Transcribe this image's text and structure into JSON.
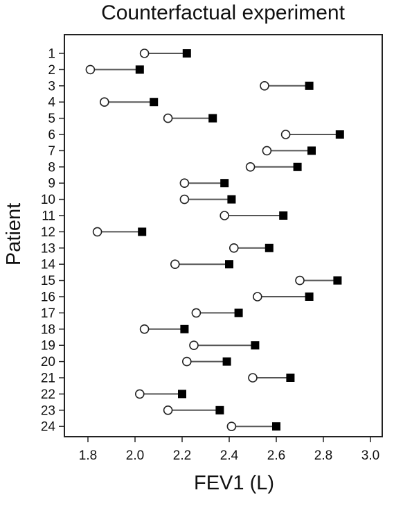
{
  "chart_data": {
    "type": "dot-dumbbell",
    "title": "Counterfactual experiment",
    "xlabel": "FEV1 (L)",
    "ylabel": "Patient",
    "xlim": [
      1.7,
      3.05
    ],
    "xticks": [
      "1.8",
      "2.0",
      "2.2",
      "2.4",
      "2.6",
      "2.8",
      "3.0"
    ],
    "categories": [
      "1",
      "2",
      "3",
      "4",
      "5",
      "6",
      "7",
      "8",
      "9",
      "10",
      "11",
      "12",
      "13",
      "14",
      "15",
      "16",
      "17",
      "18",
      "19",
      "20",
      "21",
      "22",
      "23",
      "24"
    ],
    "series": [
      {
        "marker": "open-circle",
        "color": "#ffffff",
        "values": [
          2.04,
          1.81,
          2.55,
          1.87,
          2.14,
          2.64,
          2.56,
          2.49,
          2.21,
          2.21,
          2.38,
          1.84,
          2.42,
          2.17,
          2.7,
          2.52,
          2.26,
          2.04,
          2.25,
          2.22,
          2.5,
          2.02,
          2.14,
          2.41
        ]
      },
      {
        "marker": "filled-square",
        "color": "#000000",
        "values": [
          2.22,
          2.02,
          2.74,
          2.08,
          2.33,
          2.87,
          2.75,
          2.69,
          2.38,
          2.41,
          2.63,
          2.03,
          2.57,
          2.4,
          2.86,
          2.74,
          2.44,
          2.21,
          2.51,
          2.39,
          2.66,
          2.2,
          2.36,
          2.6
        ]
      }
    ],
    "grid": false,
    "colors": {
      "line": "#555555",
      "frame": "#222222"
    }
  }
}
